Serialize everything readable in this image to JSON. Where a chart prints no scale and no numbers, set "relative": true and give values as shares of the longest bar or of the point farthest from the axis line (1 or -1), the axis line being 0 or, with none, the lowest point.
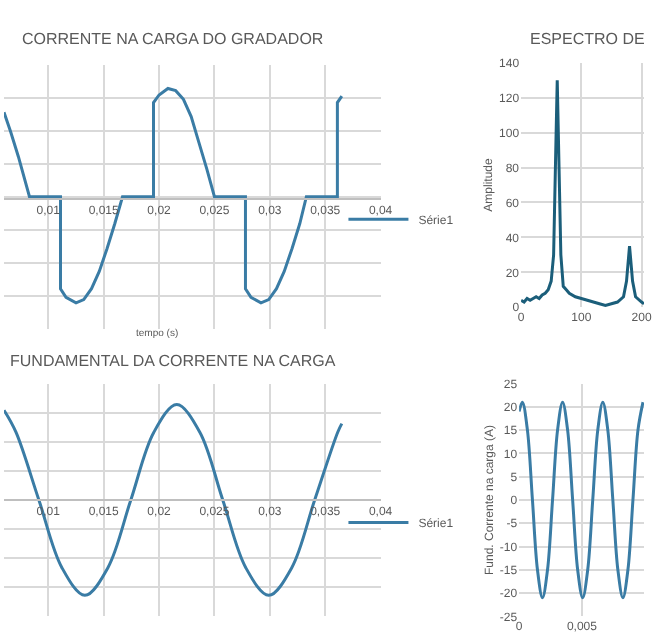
{
  "chart_data": [
    {
      "type": "line",
      "title": "CORRENTE NA CARGA DO GRADADOR",
      "xlabel": "tempo (s)",
      "relative": true,
      "tick_labels": "x",
      "grid": true,
      "legend": "right",
      "marker": "none",
      "line_style": "solid",
      "xlim": [
        0.006,
        0.04
      ],
      "xticks": [
        {
          "value": 0.01,
          "label": "0,01"
        },
        {
          "value": 0.015,
          "label": "0,015"
        },
        {
          "value": 0.02,
          "label": "0,02"
        },
        {
          "value": 0.025,
          "label": "0,025"
        },
        {
          "value": 0.03,
          "label": "0,03"
        },
        {
          "value": 0.035,
          "label": "0,035"
        },
        {
          "value": 0.04,
          "label": "0,04"
        }
      ],
      "series": [
        {
          "name": "Série1",
          "color": "#3a7ca5",
          "x": [
            0.006,
            0.0066,
            0.0073,
            0.0083,
            0.0111,
            0.0111,
            0.0116,
            0.0125,
            0.0132,
            0.0139,
            0.0146,
            0.0153,
            0.016,
            0.0167,
            0.0195,
            0.0195,
            0.02,
            0.0208,
            0.0215,
            0.0222,
            0.0229,
            0.0236,
            0.0243,
            0.025,
            0.0278,
            0.0278,
            0.0283,
            0.0292,
            0.0299,
            0.0306,
            0.0313,
            0.032,
            0.0327,
            0.0333,
            0.0361,
            0.0361,
            0.0365
          ],
          "values": [
            0.78,
            0.6,
            0.37,
            0,
            0,
            -0.85,
            -0.93,
            -0.98,
            -0.95,
            -0.85,
            -0.69,
            -0.48,
            -0.25,
            0,
            0,
            0.87,
            0.94,
            1.0,
            0.98,
            0.9,
            0.74,
            0.5,
            0.26,
            0,
            0,
            -0.85,
            -0.93,
            -0.98,
            -0.95,
            -0.85,
            -0.69,
            -0.48,
            -0.25,
            0,
            0,
            0.87,
            0.93
          ]
        }
      ]
    },
    {
      "type": "line",
      "title": "ESPECTRO DE",
      "ylabel": "Amplitude",
      "grid": true,
      "marker": "none",
      "line_style": "solid",
      "xlim": [
        0,
        204
      ],
      "xticks": [
        0,
        100,
        200
      ],
      "ylim": [
        0,
        140
      ],
      "yticks": [
        0,
        20,
        40,
        60,
        80,
        100,
        120,
        140
      ],
      "series": [
        {
          "color": "#1b5e7a",
          "x": [
            0,
            5,
            10,
            15,
            20,
            25,
            30,
            35,
            40,
            45,
            50,
            54,
            57,
            60,
            63,
            66,
            70,
            75,
            80,
            90,
            100,
            110,
            120,
            130,
            140,
            150,
            160,
            170,
            175,
            180,
            185,
            190,
            200,
            204
          ],
          "values": [
            4,
            3,
            5,
            4,
            5,
            6,
            5,
            7,
            8,
            10,
            15,
            30,
            80,
            130,
            80,
            30,
            12,
            10,
            8,
            6,
            5,
            4,
            3,
            2,
            1,
            2,
            3,
            6,
            15,
            35,
            15,
            6,
            3,
            2
          ]
        }
      ]
    },
    {
      "type": "line",
      "title": "FUNDAMENTAL DA CORRENTE NA CARGA",
      "relative": true,
      "tick_labels": "x",
      "grid": true,
      "legend": "right",
      "marker": "none",
      "line_style": "solid",
      "xlim": [
        0.006,
        0.04
      ],
      "xticks": [
        {
          "value": 0.01,
          "label": "0,01"
        },
        {
          "value": 0.015,
          "label": "0,015"
        },
        {
          "value": 0.02,
          "label": "0,02"
        },
        {
          "value": 0.025,
          "label": "0,025"
        },
        {
          "value": 0.03,
          "label": "0,03"
        },
        {
          "value": 0.035,
          "label": "0,035"
        },
        {
          "value": 0.04,
          "label": "0,04"
        }
      ],
      "series": [
        {
          "name": "Série1",
          "color": "#3a7ca5",
          "x": [
            0.006,
            0.00708,
            0.00915,
            0.01123,
            0.0133,
            0.01538,
            0.01745,
            0.01953,
            0.0216,
            0.02368,
            0.02575,
            0.02783,
            0.0299,
            0.03198,
            0.03405,
            0.03613,
            0.0365
          ],
          "values": [
            0.94,
            0.71,
            0,
            -0.71,
            -1,
            -0.71,
            0,
            0.71,
            1,
            0.71,
            0,
            -0.71,
            -1,
            -0.71,
            0,
            0.71,
            0.8
          ]
        }
      ]
    },
    {
      "type": "line",
      "ylabel": "Fund. Corrente na carga (A)",
      "grid": true,
      "marker": "none",
      "line_style": "solid",
      "xlim": [
        0,
        0.00994
      ],
      "xticks": [
        0,
        {
          "value": 0.005,
          "label": "0,005"
        }
      ],
      "ylim": [
        -25,
        25
      ],
      "yticks": [
        -25,
        -20,
        -15,
        -10,
        -5,
        0,
        5,
        10,
        15,
        20,
        25
      ],
      "series": [
        {
          "color": "#3a7ca5",
          "x": [
            0,
            0.00026,
            0.00066,
            0.00106,
            0.00146,
            0.00186,
            0.00226,
            0.00266,
            0.00306,
            0.00346,
            0.00386,
            0.00426,
            0.00466,
            0.00506,
            0.00546,
            0.00586,
            0.00626,
            0.00666,
            0.00706,
            0.00746,
            0.00786,
            0.00826,
            0.00866,
            0.00906,
            0.00946,
            0.00986
          ],
          "values": [
            19,
            21,
            15,
            0,
            -15,
            -21,
            -15,
            0,
            15,
            21,
            15,
            0,
            -15,
            -21,
            -15,
            0,
            15,
            21,
            15,
            0,
            -15,
            -21,
            -15,
            0,
            15,
            21
          ]
        }
      ]
    }
  ]
}
